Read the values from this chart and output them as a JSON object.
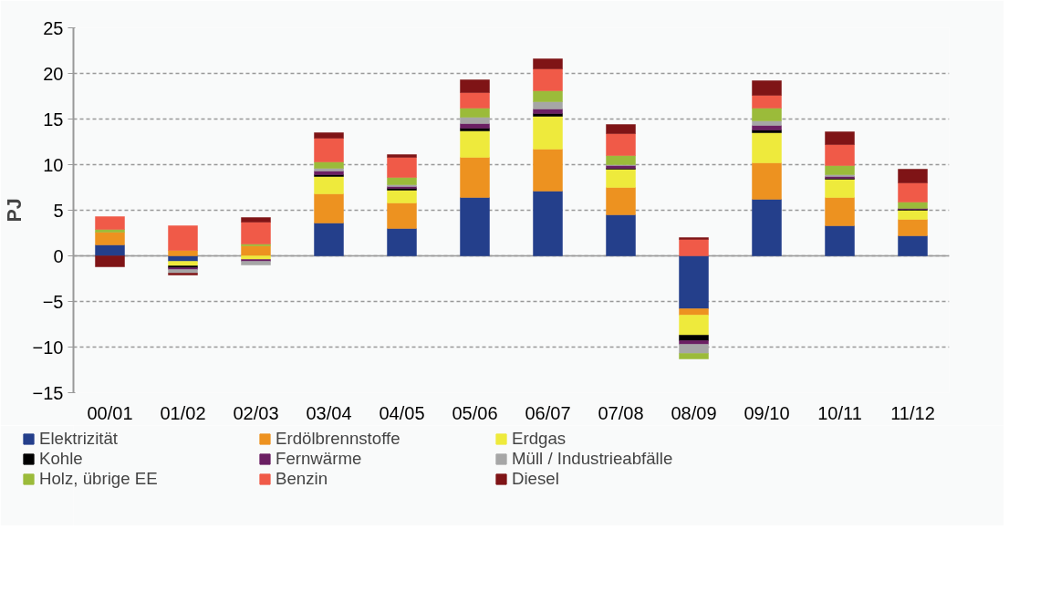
{
  "chart_data": {
    "type": "bar",
    "stacked": true,
    "ylabel": "PJ",
    "categories": [
      "00/01",
      "01/02",
      "02/03",
      "03/04",
      "04/05",
      "05/06",
      "06/07",
      "07/08",
      "08/09",
      "09/10",
      "10/11",
      "11/12"
    ],
    "ylim": [
      -15,
      25
    ],
    "yticks": [
      -15,
      -10,
      -5,
      0,
      5,
      10,
      15,
      20,
      25
    ],
    "grid": "y",
    "legend": "bottom",
    "series": [
      {
        "name": "Elektrizität",
        "color": "#243f8b",
        "values": [
          1.2,
          -0.6,
          0,
          3.6,
          3.0,
          6.4,
          7.1,
          4.5,
          -5.8,
          6.2,
          3.3,
          2.2
        ]
      },
      {
        "name": "Erdölbrennstoffe",
        "color": "#ed9220",
        "values": [
          1.4,
          0.6,
          1.1,
          3.2,
          2.8,
          4.4,
          4.6,
          3.0,
          -0.7,
          4.0,
          3.1,
          1.8
        ]
      },
      {
        "name": "Erdgas",
        "color": "#eeea3c",
        "values": [
          0,
          -0.5,
          -0.4,
          1.9,
          1.4,
          2.9,
          3.6,
          2.0,
          -2.2,
          3.3,
          2.0,
          1.0
        ]
      },
      {
        "name": "Kohle",
        "color": "#000000",
        "values": [
          0,
          -0.2,
          0,
          0.2,
          0.2,
          0.3,
          0.3,
          0.1,
          -0.6,
          0.3,
          0.1,
          0.1
        ]
      },
      {
        "name": "Fernwärme",
        "color": "#6b1f63",
        "values": [
          0,
          -0.2,
          -0.2,
          0.4,
          0.2,
          0.5,
          0.5,
          0.3,
          -0.4,
          0.5,
          0.2,
          0.1
        ]
      },
      {
        "name": "Müll / Industrieabfälle",
        "color": "#a6a6a6",
        "values": [
          0,
          -0.4,
          -0.4,
          0.3,
          0.2,
          0.7,
          0.8,
          0.1,
          -1.0,
          0.5,
          0.2,
          0
        ]
      },
      {
        "name": "Holz, übrige EE",
        "color": "#9bbb3a",
        "values": [
          0.3,
          0,
          0.2,
          0.7,
          0.8,
          1.0,
          1.2,
          1.0,
          -0.6,
          1.4,
          1.0,
          0.7
        ]
      },
      {
        "name": "Benzin",
        "color": "#f05a48",
        "values": [
          1.4,
          2.7,
          2.4,
          2.6,
          2.2,
          1.7,
          2.4,
          2.4,
          1.8,
          1.4,
          2.3,
          2.1
        ]
      },
      {
        "name": "Diesel",
        "color": "#7f1416",
        "values": [
          -1.2,
          -0.2,
          0.5,
          0.6,
          0.3,
          1.4,
          1.1,
          1.0,
          0.2,
          1.6,
          1.4,
          1.5
        ]
      }
    ]
  }
}
